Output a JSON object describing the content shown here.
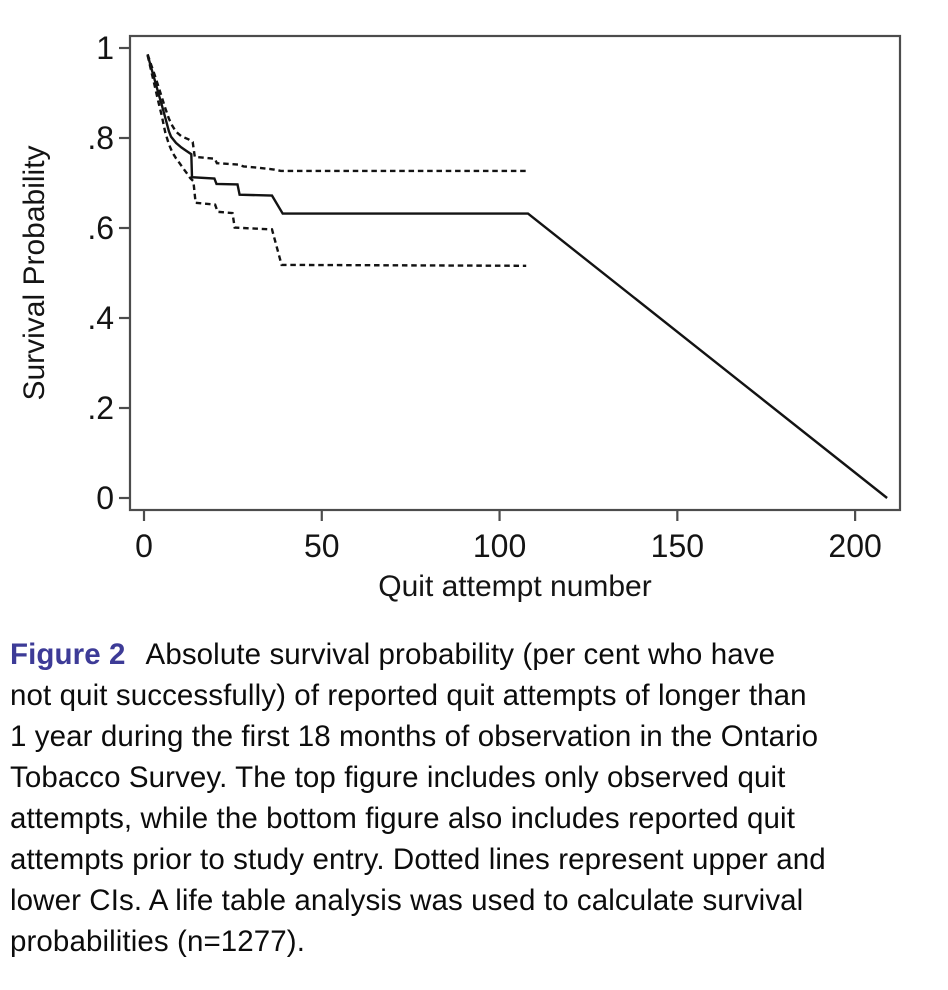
{
  "figure": {
    "caption_label": "Figure 2",
    "caption_label_color": "#3d3b97",
    "caption_lines": [
      "Absolute survival probability (per cent who have",
      "not quit successfully) of reported quit attempts of longer than",
      "1 year during the first 18 months of observation in the Ontario",
      "Tobacco Survey. The top figure includes only observed quit",
      "attempts, while the bottom figure also includes reported quit",
      "attempts prior to study entry. Dotted lines represent upper and",
      "lower CIs. A life table analysis was used to calculate survival",
      "probabilities (n=1277)."
    ]
  },
  "chart_data": {
    "type": "line",
    "title": "",
    "xlabel": "Quit attempt number",
    "ylabel": "Survival Probability",
    "xlim": [
      0,
      216
    ],
    "ylim": [
      0,
      1.03
    ],
    "x_ticks": [
      0,
      50,
      100,
      150,
      200
    ],
    "y_tick_labels": [
      "1",
      ".8",
      ".6",
      ".4",
      ".2",
      "0"
    ],
    "y_tick_values": [
      1,
      0.8,
      0.6,
      0.4,
      0.2,
      0
    ],
    "grid": false,
    "legend_position": "none",
    "annotations": "Dotted lines are upper and lower CIs; solid line is survival estimate",
    "series": [
      {
        "name": "upper-ci",
        "style": "dashed",
        "points": [
          [
            1,
            0.986
          ],
          [
            2,
            0.963
          ],
          [
            3,
            0.94
          ],
          [
            4,
            0.916
          ],
          [
            5,
            0.891
          ],
          [
            6,
            0.866
          ],
          [
            7,
            0.843
          ],
          [
            8,
            0.827
          ],
          [
            9,
            0.814
          ],
          [
            10.5,
            0.804
          ],
          [
            12.5,
            0.797
          ],
          [
            13.7,
            0.791
          ],
          [
            14.3,
            0.758
          ],
          [
            19.9,
            0.754
          ],
          [
            20.5,
            0.744
          ],
          [
            26.5,
            0.741
          ],
          [
            28,
            0.737
          ],
          [
            32,
            0.734
          ],
          [
            36.5,
            0.73
          ],
          [
            38.5,
            0.727
          ],
          [
            107.5,
            0.727
          ]
        ]
      },
      {
        "name": "lower-ci",
        "style": "dashed",
        "points": [
          [
            1,
            0.984
          ],
          [
            2,
            0.95
          ],
          [
            3,
            0.916
          ],
          [
            4,
            0.882
          ],
          [
            5,
            0.849
          ],
          [
            6,
            0.812
          ],
          [
            7,
            0.786
          ],
          [
            8,
            0.768
          ],
          [
            9,
            0.755
          ],
          [
            10,
            0.744
          ],
          [
            11,
            0.733
          ],
          [
            12,
            0.722
          ],
          [
            13,
            0.711
          ],
          [
            13.9,
            0.704
          ],
          [
            14.5,
            0.656
          ],
          [
            20,
            0.652
          ],
          [
            20.7,
            0.636
          ],
          [
            24.9,
            0.633
          ],
          [
            25.5,
            0.601
          ],
          [
            36,
            0.597
          ],
          [
            38.7,
            0.518
          ],
          [
            107.5,
            0.516
          ]
        ]
      },
      {
        "name": "survival-estimate",
        "style": "solid",
        "points": [
          [
            1,
            0.985
          ],
          [
            2,
            0.957
          ],
          [
            3,
            0.929
          ],
          [
            4,
            0.901
          ],
          [
            5,
            0.873
          ],
          [
            6,
            0.845
          ],
          [
            7,
            0.815
          ],
          [
            7.6,
            0.803
          ],
          [
            9,
            0.789
          ],
          [
            10.5,
            0.779
          ],
          [
            12,
            0.771
          ],
          [
            13.3,
            0.764
          ],
          [
            13.5,
            0.713
          ],
          [
            19.8,
            0.71
          ],
          [
            20.4,
            0.698
          ],
          [
            26.3,
            0.697
          ],
          [
            26.9,
            0.674
          ],
          [
            36,
            0.672
          ],
          [
            39,
            0.632
          ],
          [
            108,
            0.632
          ],
          [
            209,
            0
          ]
        ]
      }
    ]
  },
  "colors": {
    "axis": "#4c4c4c",
    "curve": "#131313",
    "tick_text": "#141414",
    "caption_text": "#0c0c0c"
  }
}
